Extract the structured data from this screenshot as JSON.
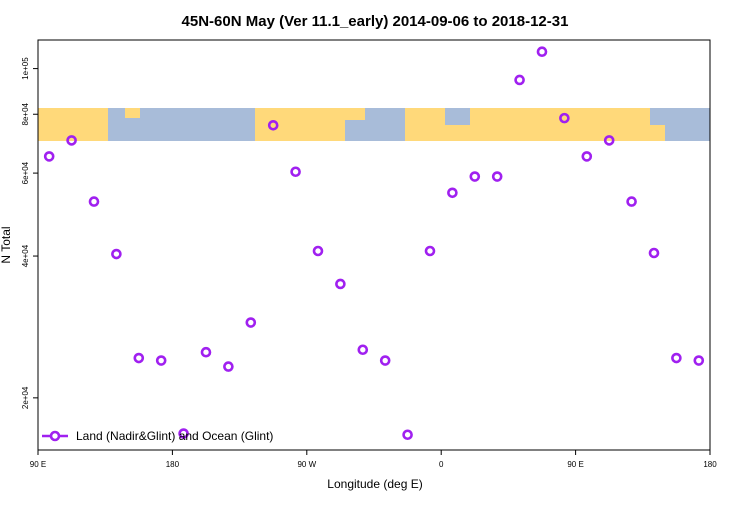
{
  "chart_data": {
    "type": "scatter",
    "title": "45N-60N May (Ver 11.1_early)   2014-09-06 to 2018-12-31",
    "x_label": "Longitude (deg E)",
    "y_label": "N Total",
    "x": [
      97.5,
      112.5,
      127.5,
      142.5,
      157.5,
      172.5,
      187.5,
      202.5,
      217.5,
      232.5,
      247.5,
      262.5,
      277.5,
      292.5,
      307.5,
      322.5,
      337.5,
      352.5,
      367.5,
      382.5,
      397.5,
      412.5,
      427.5,
      442.5,
      457.5,
      472.5,
      487.5,
      502.5,
      517.5,
      532.5
    ],
    "series": [
      {
        "name": "Land (Nadir&Glint) and Ocean (Glint)",
        "color": "#a020f0",
        "values": [
          65100,
          70400,
          52200,
          40400,
          24300,
          24000,
          16800,
          25000,
          23300,
          28900,
          75800,
          60400,
          41000,
          34900,
          25300,
          24000,
          16700,
          41000,
          54500,
          59000,
          59000,
          94600,
          108600,
          78500,
          65100,
          70400,
          52200,
          40600,
          24300,
          24000
        ]
      }
    ],
    "xlim": [
      90,
      540
    ],
    "xticks": [
      {
        "value": 90,
        "label": "90 E"
      },
      180,
      {
        "value": 270,
        "label": "90 W"
      },
      {
        "value": 360,
        "label": "0"
      },
      {
        "value": 450,
        "label": "90 E"
      },
      {
        "value": 540,
        "label": "180"
      }
    ],
    "ylim": [
      15500,
      115000
    ],
    "yticks": [
      {
        "value": 20000,
        "label": "2e+04"
      },
      {
        "value": 40000,
        "label": "4e+04"
      },
      {
        "value": 60000,
        "label": "6e+04"
      },
      {
        "value": 80000,
        "label": "8e+04"
      },
      {
        "value": 100000,
        "label": "1e+05"
      }
    ],
    "ylog": true,
    "grid": false,
    "legend": "bottom left"
  }
}
